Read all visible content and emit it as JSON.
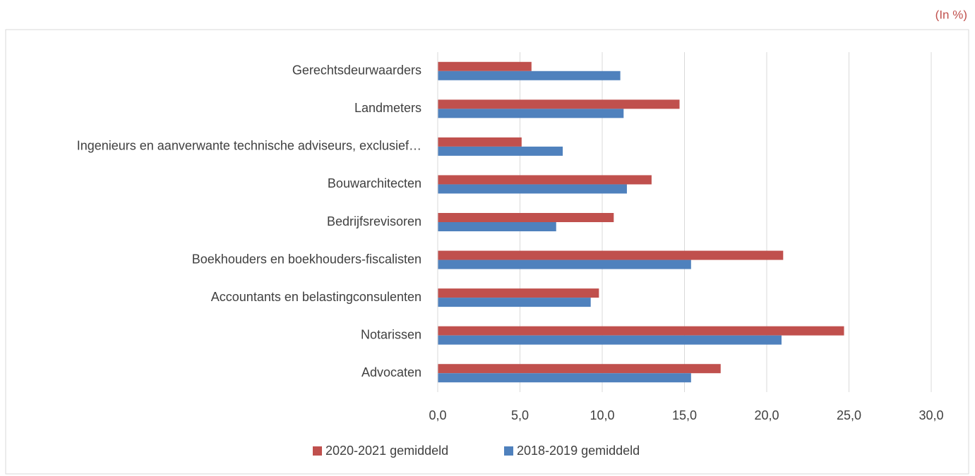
{
  "chart_data": {
    "type": "hbar",
    "note": "(In %)",
    "categories": [
      "Advocaten",
      "Notarissen",
      "Accountants en belastingconsulenten",
      "Boekhouders en boekhouders-fiscalisten",
      "Bedrijfsrevisoren",
      "Bouwarchitecten",
      "Ingenieurs en aanverwante technische adviseurs, exclusief…",
      "Landmeters",
      "Gerechtsdeurwaarders"
    ],
    "series": [
      {
        "name": "2020-2021 gemiddeld",
        "color": "#c0504d",
        "values": [
          17.2,
          24.7,
          9.8,
          21.0,
          10.7,
          13.0,
          5.1,
          14.7,
          5.7
        ]
      },
      {
        "name": "2018-2019 gemiddeld",
        "color": "#4f81bd",
        "values": [
          15.4,
          20.9,
          9.3,
          15.4,
          7.2,
          11.5,
          7.6,
          11.3,
          11.1
        ]
      }
    ],
    "xlim": [
      0,
      30
    ],
    "xticks": [
      {
        "value": 0,
        "label": "0,0"
      },
      {
        "value": 5,
        "label": "5,0"
      },
      {
        "value": 10,
        "label": "10,0"
      },
      {
        "value": 15,
        "label": "15,0"
      },
      {
        "value": 20,
        "label": "20,0"
      },
      {
        "value": 25,
        "label": "25,0"
      },
      {
        "value": 30,
        "label": "30,0"
      }
    ],
    "grid": true,
    "legend": "bottom"
  }
}
